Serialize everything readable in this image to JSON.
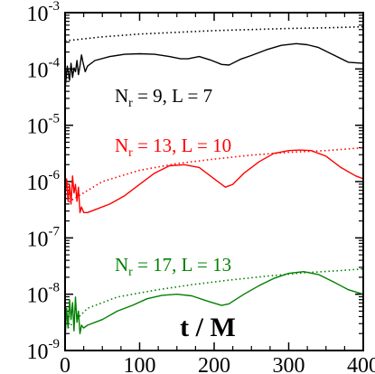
{
  "chart_data": {
    "type": "line",
    "title": "",
    "xlabel": "t / M",
    "ylabel": "",
    "xlim": [
      0,
      400
    ],
    "ylim_log10": [
      -9,
      -3
    ],
    "yscale": "log",
    "x_ticks": [
      "0",
      "100",
      "200",
      "300",
      "400"
    ],
    "y_ticks": [
      {
        "base": "10",
        "exp": "-9"
      },
      {
        "base": "10",
        "exp": "-8"
      },
      {
        "base": "10",
        "exp": "-7"
      },
      {
        "base": "10",
        "exp": "-6"
      },
      {
        "base": "10",
        "exp": "-5"
      },
      {
        "base": "10",
        "exp": "-4"
      },
      {
        "base": "10",
        "exp": "-3"
      }
    ],
    "grid": false,
    "legend": "inline labels",
    "series": [
      {
        "label_parts": {
          "n": "N",
          "r": "r",
          "rest": " = 9,  L = 7"
        },
        "color": "#000000",
        "solid": [
          [
            0,
            -4.35
          ],
          [
            3,
            -3.95
          ],
          [
            6,
            -4.2
          ],
          [
            8,
            -3.9
          ],
          [
            10,
            -4.15
          ],
          [
            12,
            -3.98
          ],
          [
            14,
            -4.05
          ],
          [
            16,
            -3.85
          ],
          [
            18,
            -4.1
          ],
          [
            20,
            -3.95
          ],
          [
            22,
            -3.75
          ],
          [
            24,
            -3.88
          ],
          [
            27,
            -4.05
          ],
          [
            30,
            -3.95
          ],
          [
            40,
            -3.85
          ],
          [
            60,
            -3.78
          ],
          [
            80,
            -3.74
          ],
          [
            100,
            -3.73
          ],
          [
            120,
            -3.74
          ],
          [
            140,
            -3.78
          ],
          [
            155,
            -3.82
          ],
          [
            165,
            -3.82
          ],
          [
            180,
            -3.78
          ],
          [
            195,
            -3.84
          ],
          [
            210,
            -3.92
          ],
          [
            220,
            -3.93
          ],
          [
            235,
            -3.83
          ],
          [
            250,
            -3.76
          ],
          [
            270,
            -3.66
          ],
          [
            290,
            -3.58
          ],
          [
            310,
            -3.55
          ],
          [
            325,
            -3.57
          ],
          [
            340,
            -3.62
          ],
          [
            360,
            -3.75
          ],
          [
            380,
            -3.88
          ],
          [
            400,
            -3.9
          ]
        ],
        "dotted": [
          [
            0,
            -3.5
          ],
          [
            50,
            -3.43
          ],
          [
            100,
            -3.38
          ],
          [
            150,
            -3.35
          ],
          [
            200,
            -3.32
          ],
          [
            250,
            -3.3
          ],
          [
            300,
            -3.28
          ],
          [
            350,
            -3.27
          ],
          [
            400,
            -3.25
          ]
        ]
      },
      {
        "label_parts": {
          "n": "N",
          "r": "r",
          "rest": " = 13,  L = 10"
        },
        "color": "#ff0000",
        "solid": [
          [
            0,
            -6.25
          ],
          [
            2,
            -5.95
          ],
          [
            4,
            -6.35
          ],
          [
            6,
            -6.05
          ],
          [
            8,
            -6.4
          ],
          [
            10,
            -5.9
          ],
          [
            12,
            -6.2
          ],
          [
            14,
            -6.05
          ],
          [
            16,
            -6.35
          ],
          [
            18,
            -6.1
          ],
          [
            20,
            -6.55
          ],
          [
            22,
            -6.45
          ],
          [
            25,
            -6.55
          ],
          [
            30,
            -6.55
          ],
          [
            40,
            -6.5
          ],
          [
            60,
            -6.4
          ],
          [
            80,
            -6.25
          ],
          [
            100,
            -6.05
          ],
          [
            120,
            -5.85
          ],
          [
            140,
            -5.72
          ],
          [
            160,
            -5.7
          ],
          [
            180,
            -5.75
          ],
          [
            200,
            -5.95
          ],
          [
            215,
            -6.1
          ],
          [
            225,
            -6.05
          ],
          [
            240,
            -5.85
          ],
          [
            260,
            -5.65
          ],
          [
            280,
            -5.5
          ],
          [
            300,
            -5.45
          ],
          [
            315,
            -5.44
          ],
          [
            330,
            -5.45
          ],
          [
            350,
            -5.55
          ],
          [
            370,
            -5.75
          ],
          [
            390,
            -5.9
          ],
          [
            400,
            -5.95
          ]
        ],
        "dotted": [
          [
            0,
            -6.4
          ],
          [
            50,
            -6.0
          ],
          [
            100,
            -5.8
          ],
          [
            150,
            -5.68
          ],
          [
            200,
            -5.6
          ],
          [
            250,
            -5.53
          ],
          [
            300,
            -5.48
          ],
          [
            350,
            -5.45
          ],
          [
            400,
            -5.4
          ]
        ]
      },
      {
        "label_parts": {
          "n": "N",
          "r": "r",
          "rest": " = 17,  L = 13"
        },
        "color": "#008000",
        "solid": [
          [
            0,
            -8.8
          ],
          [
            2,
            -8.25
          ],
          [
            4,
            -8.6
          ],
          [
            6,
            -8.1
          ],
          [
            8,
            -8.45
          ],
          [
            10,
            -8.15
          ],
          [
            12,
            -8.65
          ],
          [
            14,
            -8.05
          ],
          [
            16,
            -8.5
          ],
          [
            18,
            -8.3
          ],
          [
            20,
            -8.7
          ],
          [
            22,
            -8.55
          ],
          [
            25,
            -8.6
          ],
          [
            30,
            -8.55
          ],
          [
            50,
            -8.45
          ],
          [
            70,
            -8.3
          ],
          [
            90,
            -8.2
          ],
          [
            110,
            -8.08
          ],
          [
            130,
            -8.02
          ],
          [
            150,
            -8.0
          ],
          [
            170,
            -8.03
          ],
          [
            190,
            -8.12
          ],
          [
            210,
            -8.2
          ],
          [
            220,
            -8.17
          ],
          [
            240,
            -8.0
          ],
          [
            260,
            -7.85
          ],
          [
            280,
            -7.72
          ],
          [
            300,
            -7.63
          ],
          [
            320,
            -7.6
          ],
          [
            340,
            -7.65
          ],
          [
            360,
            -7.78
          ],
          [
            380,
            -7.92
          ],
          [
            400,
            -8.0
          ]
        ],
        "dotted": [
          [
            0,
            -8.65
          ],
          [
            30,
            -8.25
          ],
          [
            70,
            -8.05
          ],
          [
            120,
            -7.93
          ],
          [
            170,
            -7.83
          ],
          [
            220,
            -7.75
          ],
          [
            270,
            -7.68
          ],
          [
            320,
            -7.62
          ],
          [
            370,
            -7.58
          ],
          [
            400,
            -7.55
          ]
        ]
      }
    ]
  }
}
